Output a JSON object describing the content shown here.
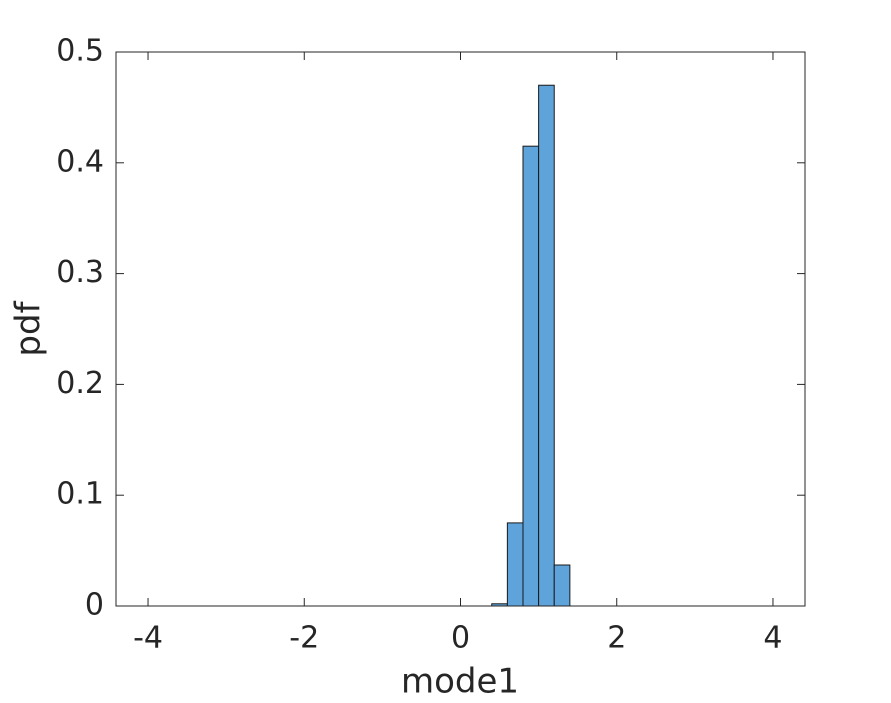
{
  "chart_data": {
    "type": "histogram",
    "xlabel": "mode1",
    "ylabel": "pdf",
    "bins": [
      -4,
      -3.8,
      -3.6,
      -3.4,
      -3.2,
      -3,
      -2.8,
      -2.6,
      -2.4,
      -2.2,
      -2,
      -1.8,
      -1.6,
      -1.4,
      -1.2,
      -1,
      -0.8,
      -0.6,
      -0.4,
      -0.2,
      0,
      0.2,
      0.4,
      0.6,
      0.8,
      1,
      1.2,
      1.4,
      1.6,
      1.8,
      2,
      2.2,
      2.4,
      2.6,
      2.8,
      3,
      3.2,
      3.4,
      3.6,
      3.8,
      4
    ],
    "values": [
      0,
      0,
      0,
      0,
      0,
      0,
      0,
      0,
      0,
      0,
      0,
      0,
      0,
      0,
      0,
      0,
      0,
      0,
      0,
      0,
      0,
      0,
      0.002,
      0.075,
      0.415,
      0.47,
      0.037,
      0,
      0,
      0,
      0,
      0,
      0,
      0,
      0,
      0,
      0,
      0,
      0,
      0
    ],
    "color": "#5ea3d9",
    "xlim": [
      -4.41,
      4.41
    ],
    "xticks": [
      -4,
      -2,
      0,
      2,
      4
    ],
    "ylim": [
      0,
      0.5
    ],
    "yticks": [
      0,
      0.1,
      0.2,
      0.3,
      0.4,
      0.5
    ]
  }
}
